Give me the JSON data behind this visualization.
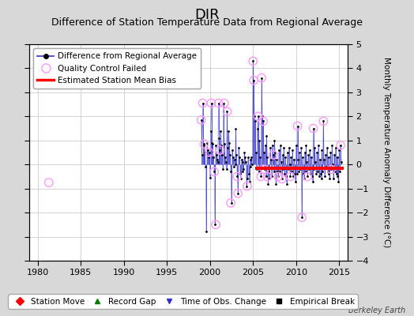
{
  "title": "DIR",
  "subtitle": "Difference of Station Temperature Data from Regional Average",
  "ylabel_right": "Monthly Temperature Anomaly Difference (°C)",
  "xlim": [
    1979,
    2016
  ],
  "ylim": [
    -4,
    5
  ],
  "yticks": [
    -4,
    -3,
    -2,
    -1,
    0,
    1,
    2,
    3,
    4,
    5
  ],
  "xticks": [
    1980,
    1985,
    1990,
    1995,
    2000,
    2005,
    2010,
    2015
  ],
  "fig_bg_color": "#d8d8d8",
  "plot_bg_color": "#ffffff",
  "grid_color": "#cccccc",
  "main_line_color": "#3333cc",
  "main_dot_color": "#000000",
  "qc_circle_color": "#ff99ff",
  "bias_line_color": "#ff0000",
  "bias_line_x": [
    2005.3,
    2015.5
  ],
  "bias_line_y": [
    -0.15,
    -0.15
  ],
  "single_qc_x": 1981.3,
  "single_qc_y": -0.75,
  "time_series_x": [
    1999.0,
    1999.08,
    1999.17,
    1999.25,
    1999.33,
    1999.42,
    1999.5,
    1999.58,
    1999.67,
    1999.75,
    1999.83,
    1999.92,
    2000.0,
    2000.08,
    2000.17,
    2000.25,
    2000.33,
    2000.42,
    2000.5,
    2000.58,
    2000.67,
    2000.75,
    2000.83,
    2000.92,
    2001.0,
    2001.08,
    2001.17,
    2001.25,
    2001.33,
    2001.42,
    2001.5,
    2001.58,
    2001.67,
    2001.75,
    2001.83,
    2001.92,
    2002.0,
    2002.08,
    2002.17,
    2002.25,
    2002.33,
    2002.42,
    2002.5,
    2002.58,
    2002.67,
    2002.75,
    2002.83,
    2002.92,
    2003.0,
    2003.08,
    2003.17,
    2003.25,
    2003.33,
    2003.42,
    2003.5,
    2003.58,
    2003.67,
    2003.75,
    2003.83,
    2003.92,
    2004.0,
    2004.08,
    2004.17,
    2004.25,
    2004.33,
    2004.42,
    2004.5,
    2004.58,
    2004.67,
    2004.75,
    2004.83,
    2004.92,
    2005.0,
    2005.08,
    2005.17,
    2005.25,
    2005.33,
    2005.42,
    2005.5,
    2005.58,
    2005.67,
    2005.75,
    2005.83,
    2005.92,
    2006.0,
    2006.08,
    2006.17,
    2006.25,
    2006.33,
    2006.42,
    2006.5,
    2006.58,
    2006.67,
    2006.75,
    2006.83,
    2006.92,
    2007.0,
    2007.08,
    2007.17,
    2007.25,
    2007.33,
    2007.42,
    2007.5,
    2007.58,
    2007.67,
    2007.75,
    2007.83,
    2007.92,
    2008.0,
    2008.08,
    2008.17,
    2008.25,
    2008.33,
    2008.42,
    2008.5,
    2008.58,
    2008.67,
    2008.75,
    2008.83,
    2008.92,
    2009.0,
    2009.08,
    2009.17,
    2009.25,
    2009.33,
    2009.42,
    2009.5,
    2009.58,
    2009.67,
    2009.75,
    2009.83,
    2009.92,
    2010.0,
    2010.08,
    2010.17,
    2010.25,
    2010.33,
    2010.42,
    2010.5,
    2010.58,
    2010.67,
    2010.75,
    2010.83,
    2010.92,
    2011.0,
    2011.08,
    2011.17,
    2011.25,
    2011.33,
    2011.42,
    2011.5,
    2011.58,
    2011.67,
    2011.75,
    2011.83,
    2011.92,
    2012.0,
    2012.08,
    2012.17,
    2012.25,
    2012.33,
    2012.42,
    2012.5,
    2012.58,
    2012.67,
    2012.75,
    2012.83,
    2012.92,
    2013.0,
    2013.08,
    2013.17,
    2013.25,
    2013.33,
    2013.42,
    2013.5,
    2013.58,
    2013.67,
    2013.75,
    2013.83,
    2013.92,
    2014.0,
    2014.08,
    2014.17,
    2014.25,
    2014.33,
    2014.42,
    2014.5,
    2014.58,
    2014.67,
    2014.75,
    2014.83,
    2014.92,
    2015.0,
    2015.08,
    2015.17,
    2015.25
  ],
  "time_series_y": [
    1.85,
    0.4,
    2.55,
    0.8,
    0.85,
    0.5,
    -0.1,
    -2.8,
    0.9,
    0.6,
    0.3,
    0.5,
    -0.55,
    1.4,
    2.55,
    0.9,
    0.85,
    0.3,
    -0.3,
    -2.5,
    0.8,
    0.4,
    0.2,
    0.1,
    2.55,
    1.1,
    0.6,
    1.4,
    0.8,
    0.4,
    -0.2,
    2.55,
    0.85,
    0.3,
    0.1,
    -0.2,
    2.2,
    0.7,
    1.4,
    0.9,
    0.4,
    -0.3,
    -1.6,
    0.6,
    0.3,
    -0.1,
    0.2,
    0.0,
    1.5,
    0.4,
    -0.5,
    -1.2,
    0.7,
    0.3,
    -0.4,
    -0.6,
    0.2,
    -0.3,
    0.1,
    -0.2,
    0.5,
    0.3,
    0.1,
    -0.9,
    -0.6,
    0.3,
    -0.4,
    -0.7,
    0.2,
    -0.1,
    0.3,
    0.0,
    4.3,
    3.5,
    2.0,
    1.8,
    0.5,
    -0.2,
    1.5,
    2.0,
    -0.3,
    1.0,
    0.3,
    -0.5,
    3.6,
    2.0,
    1.8,
    0.5,
    -0.2,
    0.8,
    -0.5,
    1.2,
    0.3,
    -0.8,
    -0.3,
    -0.6,
    0.7,
    0.2,
    -0.5,
    0.8,
    0.4,
    -0.3,
    1.0,
    0.5,
    -0.8,
    0.2,
    -0.3,
    -0.5,
    0.6,
    -0.3,
    0.8,
    0.1,
    -0.6,
    0.4,
    -0.2,
    0.7,
    -0.4,
    0.3,
    -0.5,
    -0.8,
    0.5,
    -0.2,
    0.7,
    0.0,
    -0.5,
    0.3,
    -0.3,
    0.6,
    -0.5,
    0.2,
    -0.4,
    -0.7,
    0.8,
    -0.4,
    1.6,
    0.2,
    -0.3,
    0.5,
    -0.2,
    0.7,
    -2.2,
    0.3,
    -0.4,
    -0.6,
    0.5,
    -0.3,
    0.8,
    0.1,
    -0.5,
    0.4,
    -0.2,
    0.6,
    -0.4,
    0.3,
    -0.5,
    -0.7,
    1.5,
    -0.2,
    0.7,
    0.1,
    -0.4,
    0.5,
    -0.3,
    0.8,
    -0.5,
    0.2,
    -0.4,
    -0.6,
    0.6,
    -0.3,
    1.8,
    0.2,
    -0.5,
    0.4,
    -0.1,
    0.7,
    -0.3,
    0.3,
    -0.4,
    -0.6,
    0.5,
    -0.2,
    0.8,
    0.0,
    -0.6,
    0.4,
    -0.3,
    0.7,
    -0.4,
    0.3,
    -0.5,
    -0.7,
    0.6,
    -0.3,
    0.8,
    0.1
  ],
  "qc_failed_x": [
    1981.3,
    1999.0,
    1999.17,
    1999.33,
    1999.92,
    2000.17,
    2000.5,
    2000.67,
    2001.0,
    2001.17,
    2001.67,
    2002.0,
    2002.42,
    2003.17,
    2003.25,
    2004.33,
    2005.0,
    2005.08,
    2005.58,
    2005.92,
    2006.0,
    2006.17,
    2006.33,
    2006.67,
    2007.33,
    2007.92,
    2008.33,
    2009.33,
    2010.17,
    2010.67,
    2011.33,
    2012.0,
    2013.17,
    2014.08,
    2015.17
  ],
  "qc_failed_y": [
    -0.75,
    1.85,
    2.55,
    0.85,
    0.5,
    2.55,
    -0.3,
    -2.5,
    2.55,
    0.6,
    2.55,
    2.2,
    -1.6,
    -0.5,
    -1.2,
    -0.9,
    4.3,
    3.5,
    2.0,
    -0.5,
    3.6,
    1.8,
    -0.2,
    -0.5,
    0.4,
    -0.5,
    -0.6,
    -0.5,
    1.6,
    -2.2,
    -0.5,
    1.5,
    1.8,
    -0.2,
    0.8
  ],
  "fontsize_title": 13,
  "fontsize_subtitle": 9,
  "fontsize_tick": 8,
  "fontsize_legend": 7.5,
  "fontsize_ylabel": 7.5,
  "berkeley_earth_label": "Berkeley Earth"
}
